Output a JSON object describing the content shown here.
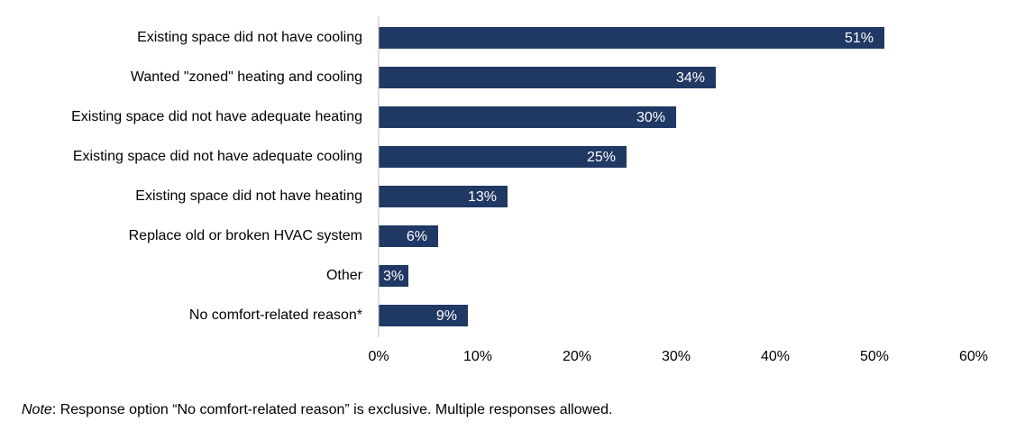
{
  "chart_data": {
    "type": "hbar",
    "categories": [
      "Existing space did not have cooling",
      "Wanted \"zoned\" heating and cooling",
      "Existing space did not have adequate heating",
      "Existing space did not have adequate cooling",
      "Existing space did not have heating",
      "Replace old or broken HVAC system",
      "Other",
      "No comfort-related reason*"
    ],
    "values": [
      51,
      34,
      30,
      25,
      13,
      6,
      3,
      9
    ],
    "value_labels": [
      "51%",
      "34%",
      "30%",
      "25%",
      "13%",
      "6%",
      "3%",
      "9%"
    ],
    "color": "#203864",
    "xlim": [
      0,
      60
    ],
    "xticks": [
      {
        "value": 0,
        "label": "0%"
      },
      {
        "value": 10,
        "label": "10%"
      },
      {
        "value": 20,
        "label": "20%"
      },
      {
        "value": 30,
        "label": "30%"
      },
      {
        "value": 40,
        "label": "40%"
      },
      {
        "value": 50,
        "label": "50%"
      },
      {
        "value": 60,
        "label": "60%"
      }
    ],
    "note_label": "Note",
    "note": ": Response option “No comfort-related reason” is exclusive. Multiple responses allowed."
  }
}
